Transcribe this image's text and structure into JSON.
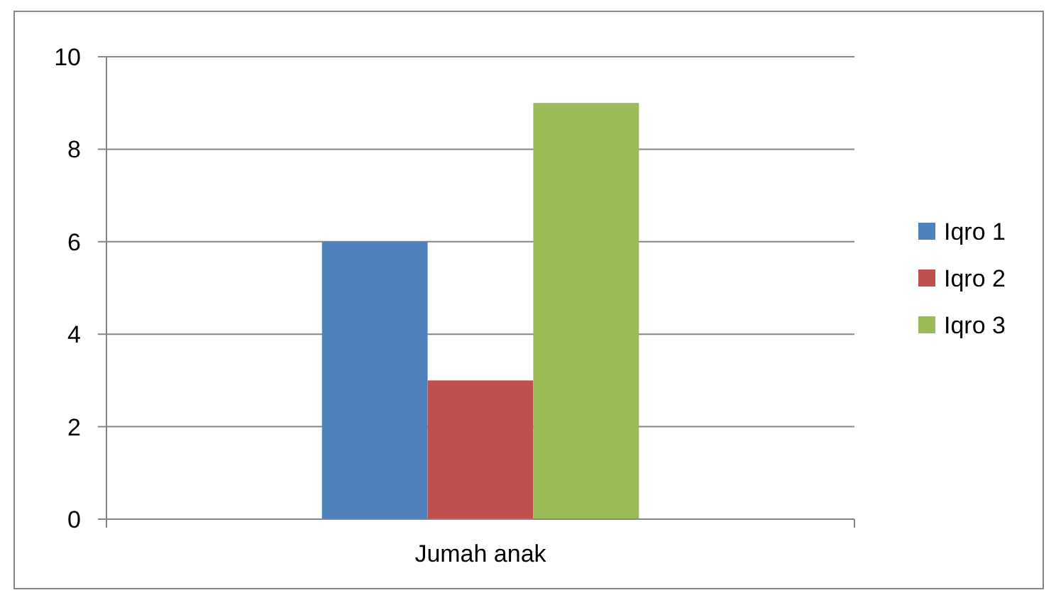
{
  "chart_data": {
    "type": "bar",
    "categories": [
      "Jumah anak"
    ],
    "series": [
      {
        "name": "Iqro 1",
        "color": "#4f81bd",
        "values": [
          6
        ]
      },
      {
        "name": "Iqro 2",
        "color": "#c0504d",
        "values": [
          3
        ]
      },
      {
        "name": "Iqro 3",
        "color": "#9bbb59",
        "values": [
          9
        ]
      }
    ],
    "ylim": [
      0,
      10
    ],
    "yticks": [
      0,
      2,
      4,
      6,
      8,
      10
    ],
    "grid": "y",
    "legend": "right"
  }
}
